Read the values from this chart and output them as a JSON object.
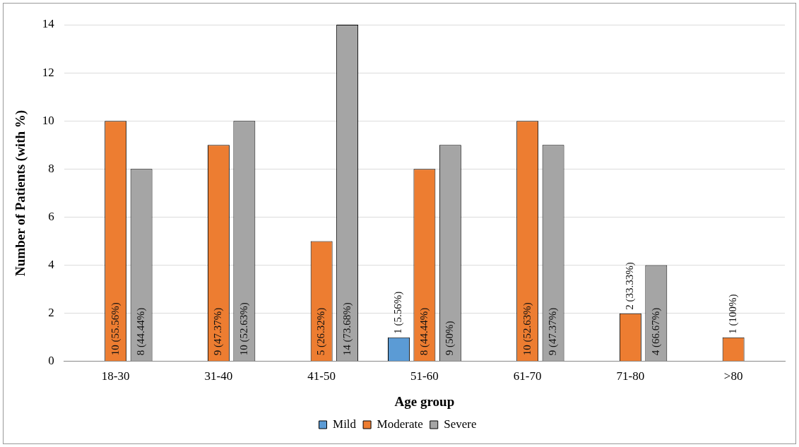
{
  "chart_data": {
    "type": "bar",
    "xlabel": "Age group",
    "ylabel": "Number of Patients (with %)",
    "categories": [
      "18-30",
      "31-40",
      "41-50",
      "51-60",
      "61-70",
      "71-80",
      ">80"
    ],
    "series": [
      {
        "name": "Mild",
        "color": "#5b9bd5",
        "values": [
          null,
          null,
          null,
          1,
          null,
          null,
          null
        ],
        "value_labels": [
          null,
          null,
          null,
          "1 (5.56%)",
          null,
          null,
          null
        ]
      },
      {
        "name": "Moderate",
        "color": "#ed7d31",
        "values": [
          10,
          9,
          5,
          8,
          10,
          2,
          1
        ],
        "value_labels": [
          "10 (55.56%)",
          "9 (47.37%)",
          "5 (26.32%)",
          "8 (44.44%)",
          "10 (52.63%)",
          "2 (33.33%)",
          "1 (100%)"
        ]
      },
      {
        "name": "Severe",
        "color": "#a5a5a5",
        "values": [
          8,
          10,
          14,
          9,
          9,
          4,
          null
        ],
        "value_labels": [
          "8 (44.44%)",
          "10 (52.63%)",
          "14 (73.68%)",
          "9 (50%)",
          "9 (47.37%)",
          "4 (66.67%)",
          null
        ]
      }
    ],
    "ylim": [
      0,
      14
    ],
    "yticks": [
      0,
      2,
      4,
      6,
      8,
      10,
      12,
      14
    ],
    "grid": "y",
    "legend": "bottom"
  }
}
